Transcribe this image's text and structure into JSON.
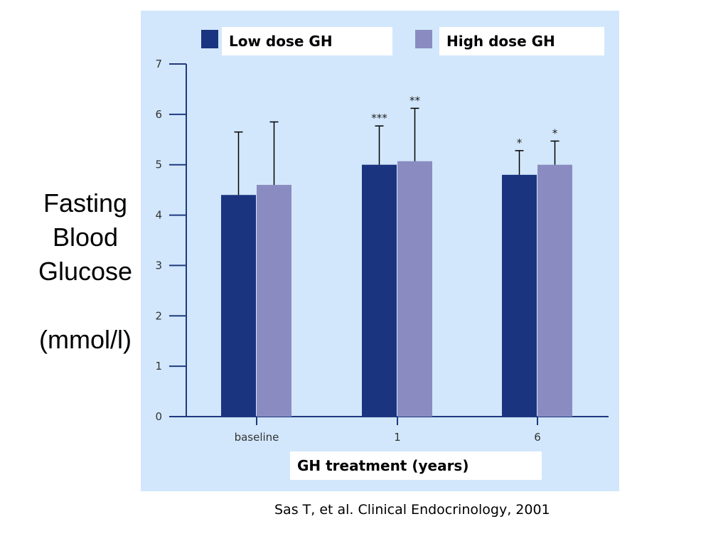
{
  "ylabel_lines": [
    "Fasting",
    "Blood",
    "Glucose"
  ],
  "ylabel_unit": "(mmol/l)",
  "citation": "Sas T, et al. Clinical Endocrinology, 2001",
  "colors": {
    "panel": "#d2e7fb",
    "low": "#1a3480",
    "high": "#8a8cc1",
    "axis": "#1f3a80",
    "error": "#000000"
  },
  "chart_data": {
    "type": "bar",
    "categories": [
      "baseline",
      "1",
      "6"
    ],
    "xlabel": "GH treatment (years)",
    "ylabel": "Fasting Blood Glucose (mmol/l)",
    "ylim": [
      0,
      7
    ],
    "yticks": [
      "0",
      "1",
      "2",
      "3",
      "4",
      "5",
      "6",
      "7"
    ],
    "legend_position": "top",
    "grid": false,
    "series": [
      {
        "name": "Low dose GH",
        "values": [
          4.4,
          5.0,
          4.8
        ],
        "error_upper": [
          5.65,
          5.77,
          5.28
        ],
        "significance": [
          "",
          "***",
          "*"
        ]
      },
      {
        "name": "High dose GH",
        "values": [
          4.6,
          5.07,
          5.0
        ],
        "error_upper": [
          5.85,
          6.12,
          5.47
        ],
        "significance": [
          "",
          "**",
          "*"
        ]
      }
    ]
  }
}
